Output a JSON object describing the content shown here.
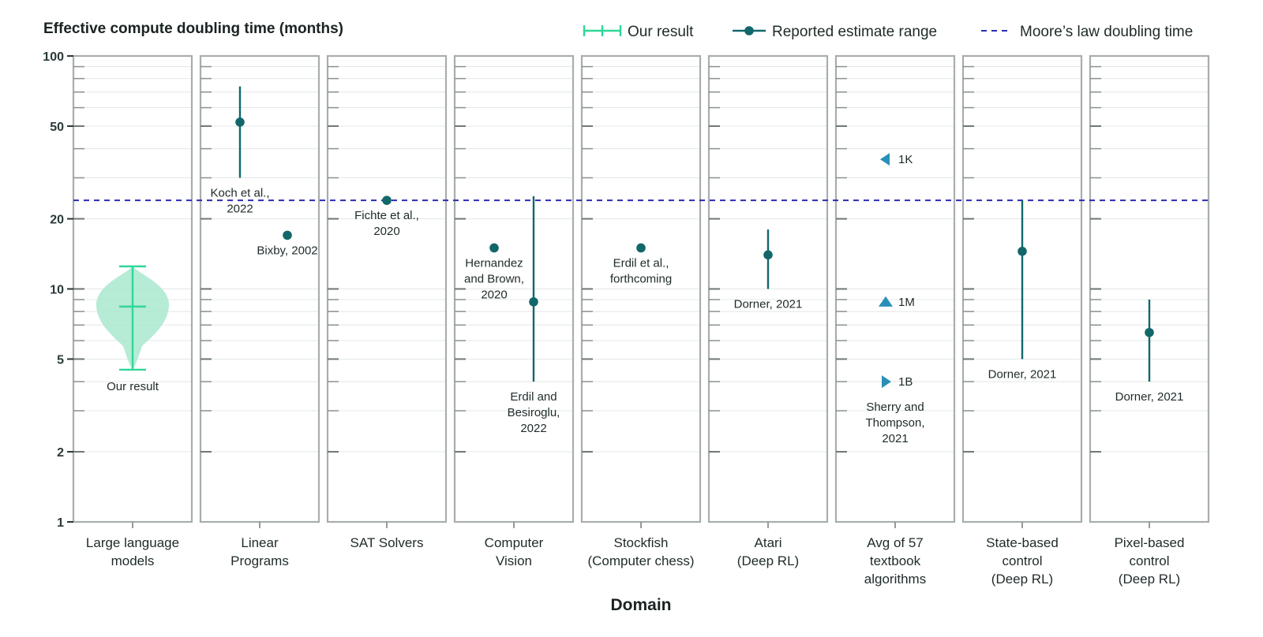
{
  "chart_data": {
    "type": "scatter",
    "title": "Effective compute doubling time (months)",
    "xlabel": "Domain",
    "ylabel": "Effective compute doubling time (months)",
    "y_scale": "log",
    "ylim": [
      1,
      100
    ],
    "y_ticks": [
      1,
      2,
      5,
      10,
      20,
      50,
      100
    ],
    "y_tick_labels": [
      "1",
      "2",
      "5",
      "10",
      "20",
      "50",
      "100"
    ],
    "moores_law": 24,
    "legend": [
      {
        "key": "our",
        "label": "Our result"
      },
      {
        "key": "reported",
        "label": "Reported estimate range"
      },
      {
        "key": "moore",
        "label": "Moore’s law doubling time"
      }
    ],
    "colors": {
      "point": "#12676b",
      "violin_fill": "#a9e8cf",
      "violin_line": "#2fd896",
      "triangle": "#2990b8",
      "moore": "#2b2bb3",
      "panel_border": "#a8adad",
      "grid": "#e3e8e8",
      "text": "#1f2a2a"
    },
    "domains": [
      {
        "label": [
          "Large language",
          "models"
        ],
        "violin": {
          "low": 4.5,
          "high": 12.5,
          "median": 8.4,
          "wide": 8.4,
          "label": "Our result"
        }
      },
      {
        "label": [
          "Linear",
          "Programs"
        ],
        "points": [
          {
            "value": 52,
            "low": 30,
            "high": 74,
            "offset": -0.25,
            "label": [
              "Koch et al.,",
              "2022"
            ]
          },
          {
            "value": 17,
            "offset": 0.35,
            "label": [
              "Bixby, 2002"
            ]
          }
        ]
      },
      {
        "label": [
          "SAT Solvers"
        ],
        "points": [
          {
            "value": 24,
            "offset": 0,
            "label": [
              "Fichte et al.,",
              "2020"
            ]
          }
        ]
      },
      {
        "label": [
          "Computer",
          "Vision"
        ],
        "points": [
          {
            "value": 15,
            "offset": -0.25,
            "label": [
              "Hernandez",
              "and Brown,",
              "2020"
            ]
          },
          {
            "value": 8.8,
            "low": 4,
            "high": 25,
            "offset": 0.25,
            "label": [
              "Erdil and",
              "Besiroglu,",
              "2022"
            ]
          }
        ]
      },
      {
        "label": [
          "Stockfish",
          "(Computer chess)"
        ],
        "points": [
          {
            "value": 15,
            "offset": 0,
            "label": [
              "Erdil et al.,",
              "forthcoming"
            ]
          }
        ]
      },
      {
        "label": [
          "Atari",
          "(Deep RL)"
        ],
        "points": [
          {
            "value": 14,
            "low": 10,
            "high": 18,
            "offset": 0,
            "label": [
              "Dorner, 2021"
            ]
          }
        ]
      },
      {
        "label": [
          "Avg of 57",
          "textbook",
          "algorithms"
        ],
        "markers": [
          {
            "value": 36,
            "label": "1K",
            "shape": "left"
          },
          {
            "value": 8.8,
            "label": "1M",
            "shape": "up"
          },
          {
            "value": 4,
            "label": "1B",
            "shape": "right"
          }
        ],
        "caption": [
          "Sherry and",
          "Thompson,",
          "2021"
        ]
      },
      {
        "label": [
          "State-based",
          "control",
          "(Deep RL)"
        ],
        "points": [
          {
            "value": 14.5,
            "low": 5,
            "high": 24,
            "offset": 0,
            "label": [
              "Dorner, 2021"
            ]
          }
        ]
      },
      {
        "label": [
          "Pixel-based",
          "control",
          "(Deep RL)"
        ],
        "points": [
          {
            "value": 6.5,
            "low": 4,
            "high": 9,
            "offset": 0,
            "label": [
              "Dorner, 2021"
            ]
          }
        ]
      }
    ]
  }
}
